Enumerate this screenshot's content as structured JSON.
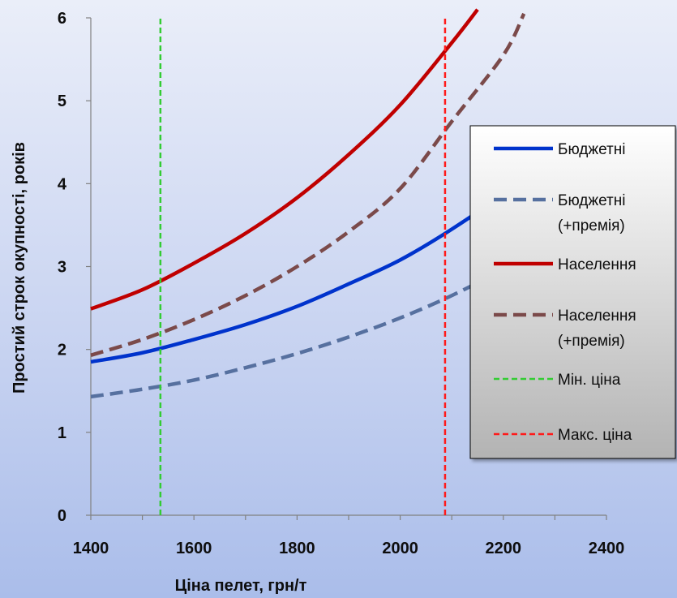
{
  "chart_data": {
    "type": "line",
    "title": "",
    "xlabel": "Ціна пелет, грн/т",
    "ylabel": "Простий строк окупності, років",
    "xlim": [
      1400,
      2400
    ],
    "ylim": [
      0,
      6
    ],
    "x_ticks": [
      1400,
      1600,
      1800,
      2000,
      2200,
      2400
    ],
    "y_ticks": [
      0,
      1,
      2,
      3,
      4,
      5,
      6
    ],
    "grid": false,
    "legend_position": "right",
    "series": [
      {
        "name": "Бюджетні",
        "style": "solid",
        "color": "#0033cc",
        "x": [
          1400,
          1500,
          1600,
          1700,
          1800,
          1900,
          2000,
          2100,
          2200,
          2300
        ],
        "y": [
          1.85,
          1.96,
          2.12,
          2.3,
          2.52,
          2.79,
          3.08,
          3.45,
          3.88,
          4.38
        ]
      },
      {
        "name": "Бюджетні (+премія)",
        "style": "dashed",
        "color": "#56709f",
        "x": [
          1400,
          1500,
          1600,
          1700,
          1800,
          1900,
          2000,
          2100,
          2200,
          2300
        ],
        "y": [
          1.43,
          1.52,
          1.63,
          1.78,
          1.95,
          2.15,
          2.38,
          2.65,
          2.97,
          3.35
        ]
      },
      {
        "name": "Населення",
        "style": "solid",
        "color": "#c00000",
        "x": [
          1400,
          1500,
          1600,
          1700,
          1800,
          1900,
          2000,
          2100,
          2150
        ],
        "y": [
          2.49,
          2.72,
          3.04,
          3.4,
          3.83,
          4.35,
          4.95,
          5.7,
          6.1
        ]
      },
      {
        "name": "Населення (+премія)",
        "style": "dashed",
        "color": "#7b4a4a",
        "x": [
          1400,
          1500,
          1600,
          1700,
          1800,
          1900,
          2000,
          2100,
          2200,
          2240
        ],
        "y": [
          1.93,
          2.12,
          2.36,
          2.65,
          3.0,
          3.42,
          3.94,
          4.75,
          5.55,
          6.05
        ]
      },
      {
        "name": "Мін. ціна",
        "style": "dashed",
        "color": "#33cc33",
        "x": [
          1535,
          1535
        ],
        "y": [
          0,
          6
        ]
      },
      {
        "name": "Макс. ціна",
        "style": "dashed",
        "color": "#ff1a1a",
        "x": [
          2087,
          2087
        ],
        "y": [
          0,
          6
        ]
      }
    ],
    "legend": [
      {
        "series": 0,
        "lines": [
          "Бюджетні"
        ]
      },
      {
        "series": 1,
        "lines": [
          "Бюджетні",
          "(+премія)"
        ]
      },
      {
        "series": 2,
        "lines": [
          "Населення"
        ]
      },
      {
        "series": 3,
        "lines": [
          "Населення",
          "(+премія)"
        ]
      },
      {
        "series": 4,
        "lines": [
          "Мін. ціна"
        ]
      },
      {
        "series": 5,
        "lines": [
          "Макс. ціна"
        ]
      }
    ]
  }
}
